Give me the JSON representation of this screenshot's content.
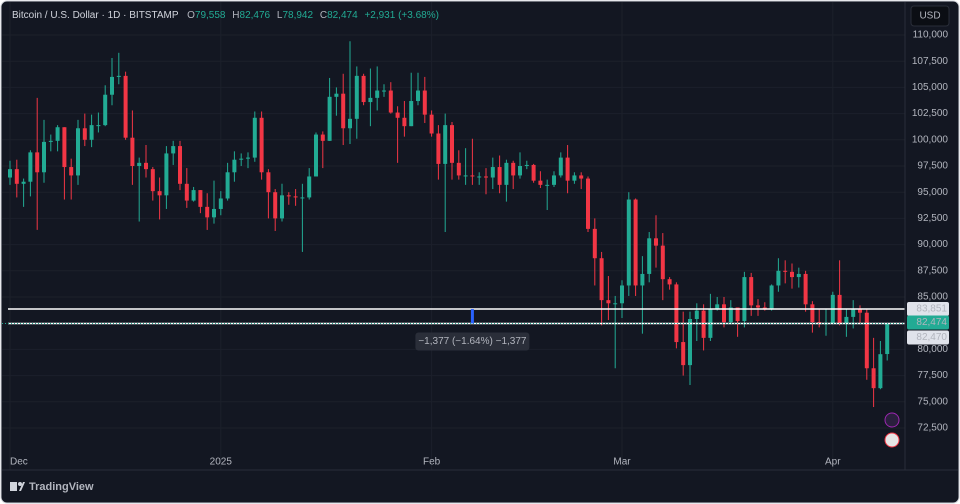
{
  "header": {
    "symbol": "Bitcoin / U.S. Dollar · 1D · BITSTAMP",
    "ohlc": [
      {
        "key": "O",
        "value": "79,558"
      },
      {
        "key": "H",
        "value": "82,476"
      },
      {
        "key": "L",
        "value": "78,942"
      },
      {
        "key": "C",
        "value": "82,474"
      }
    ],
    "change": "+2,931 (+3.68%)",
    "currency": "USD",
    "brand": "TradingView"
  },
  "chart_data": {
    "type": "candlestick",
    "up_color": "#22ab94",
    "down_color": "#f23645",
    "grid": true,
    "categories": [
      "Dec",
      null,
      null,
      null,
      null,
      null,
      null,
      null,
      null,
      null,
      null,
      null,
      null,
      null,
      null,
      null,
      null,
      null,
      null,
      null,
      null,
      null,
      null,
      null,
      null,
      null,
      null,
      null,
      null,
      null,
      null,
      "2025",
      null,
      null,
      null,
      null,
      null,
      null,
      null,
      null,
      null,
      null,
      null,
      null,
      null,
      null,
      null,
      null,
      null,
      null,
      null,
      null,
      null,
      null,
      null,
      null,
      null,
      null,
      null,
      null,
      null,
      null,
      "Feb",
      null,
      null,
      null,
      null,
      null,
      null,
      null,
      null,
      null,
      null,
      null,
      null,
      null,
      null,
      null,
      null,
      null,
      null,
      null,
      null,
      null,
      null,
      null,
      null,
      null,
      null,
      null,
      "Mar",
      null,
      null,
      null,
      null,
      null,
      null,
      null,
      null,
      null,
      null,
      null,
      null,
      null,
      null,
      null,
      null,
      null,
      null,
      null,
      null,
      null,
      null,
      null,
      null,
      null,
      null,
      null,
      null,
      null,
      null,
      "Apr",
      null,
      null,
      null,
      null,
      null,
      null,
      null,
      null
    ],
    "open": [
      96400,
      97200,
      95800,
      96000,
      98800,
      96900,
      99800,
      99900,
      101200,
      97400,
      96600,
      101100,
      100000,
      101400,
      101400,
      104300,
      106000,
      106100,
      100200,
      97500,
      97800,
      97200,
      95100,
      94700,
      98700,
      99400,
      95800,
      94200,
      95200,
      93600,
      92600,
      93400,
      94400,
      96900,
      98100,
      98200,
      98300,
      102100,
      96900,
      95000,
      92500,
      94700,
      94600,
      94500,
      94500,
      96500,
      100500,
      99900,
      104100,
      104400,
      101100,
      102000,
      106100,
      103600,
      104000,
      104700,
      104700,
      102600,
      102100,
      101300,
      103700,
      104700,
      102400,
      100600,
      97700,
      101400,
      97800,
      96600,
      96600,
      96500,
      96500,
      96400,
      97400,
      95700,
      97800,
      96600,
      97500,
      97600,
      96100,
      95700,
      95700,
      96600,
      98300,
      96100,
      96600,
      96300,
      91500,
      88700,
      84700,
      84400,
      84400,
      86100,
      94300,
      86100,
      87200,
      90600,
      89900,
      86700,
      86200,
      80700,
      78500,
      82900,
      83700,
      81100,
      83900,
      84300,
      82600,
      84000,
      82700,
      86900,
      84200,
      84000,
      83800,
      86100,
      87500,
      87400,
      86900,
      87200,
      84300,
      82600,
      82400,
      82500,
      85200,
      82500,
      83100,
      83800,
      83500,
      78200,
      76300,
      79558
    ],
    "high": [
      98000,
      98100,
      96300,
      99000,
      104000,
      101900,
      100500,
      101400,
      101200,
      98200,
      101900,
      102500,
      102400,
      102600,
      105200,
      107800,
      108300,
      106500,
      102800,
      98300,
      99500,
      97400,
      96400,
      99400,
      99900,
      99900,
      97300,
      95500,
      95200,
      94900,
      96100,
      95100,
      97800,
      98900,
      98700,
      98800,
      102700,
      102700,
      97200,
      95300,
      95800,
      95000,
      95300,
      95800,
      97300,
      100700,
      100800,
      105900,
      105000,
      106300,
      109400,
      107000,
      106300,
      106800,
      107000,
      105300,
      105500,
      103200,
      103700,
      106400,
      106400,
      106000,
      102800,
      101400,
      102500,
      101700,
      99000,
      99200,
      100100,
      96900,
      97300,
      98300,
      98500,
      98100,
      98000,
      98800,
      98000,
      97700,
      97000,
      96200,
      97000,
      98800,
      99500,
      96900,
      96900,
      96500,
      92500,
      89300,
      87000,
      85100,
      86600,
      95000,
      94400,
      88900,
      91200,
      92800,
      91100,
      86900,
      86400,
      83600,
      83600,
      84400,
      84300,
      85300,
      85000,
      85000,
      84700,
      84000,
      87400,
      87300,
      84800,
      84500,
      86200,
      88700,
      88500,
      88200,
      87800,
      87500,
      84600,
      83800,
      83900,
      85500,
      88500,
      83900,
      84700,
      84200,
      83800,
      81100,
      80800,
      82476
    ],
    "low": [
      95700,
      94500,
      93600,
      94600,
      91400,
      95900,
      98900,
      98900,
      94300,
      94300,
      95700,
      99400,
      99300,
      100700,
      101300,
      103300,
      105300,
      100000,
      95700,
      92200,
      96400,
      94200,
      92400,
      93400,
      97600,
      95200,
      93500,
      94100,
      93000,
      91400,
      92000,
      92800,
      94200,
      96000,
      97500,
      97300,
      97900,
      96200,
      92500,
      91300,
      92200,
      93800,
      93700,
      89300,
      94300,
      96500,
      97300,
      99900,
      102300,
      99500,
      99600,
      100100,
      103300,
      101300,
      102800,
      104100,
      102500,
      97800,
      100300,
      101300,
      103300,
      101600,
      100300,
      96200,
      91200,
      96200,
      96200,
      95700,
      95700,
      95700,
      94800,
      95300,
      94900,
      94100,
      95300,
      96300,
      97200,
      95900,
      95400,
      93300,
      95500,
      96400,
      94900,
      95800,
      95300,
      91200,
      86100,
      82300,
      82800,
      78200,
      83000,
      85100,
      85100,
      81500,
      86400,
      87800,
      84700,
      85700,
      80100,
      77500,
      76600,
      80800,
      79900,
      80800,
      83700,
      82100,
      82400,
      81200,
      82100,
      83200,
      83200,
      83700,
      83700,
      85500,
      86300,
      85800,
      85900,
      83600,
      81600,
      82100,
      81300,
      82400,
      82300,
      81200,
      82000,
      82400,
      77100,
      74500,
      76200,
      78942
    ],
    "close": [
      97200,
      95800,
      96000,
      98800,
      96900,
      99800,
      99900,
      101200,
      97400,
      96600,
      101100,
      100000,
      101400,
      101400,
      104300,
      106000,
      106100,
      100200,
      97500,
      97800,
      97200,
      95100,
      94700,
      98700,
      99400,
      95800,
      94200,
      95200,
      93600,
      92600,
      93400,
      94400,
      96900,
      98100,
      98200,
      98300,
      102100,
      96900,
      95000,
      92500,
      94700,
      94600,
      94500,
      94500,
      96500,
      100500,
      99900,
      104100,
      104400,
      101100,
      102000,
      106100,
      103600,
      104000,
      104700,
      104700,
      102600,
      102100,
      101300,
      103700,
      104700,
      102400,
      100600,
      97700,
      101400,
      97800,
      96600,
      96600,
      96500,
      96500,
      96400,
      97400,
      95700,
      97800,
      96600,
      97500,
      97600,
      96100,
      95700,
      95700,
      96600,
      98300,
      96100,
      96600,
      96300,
      91500,
      88700,
      84700,
      84400,
      84400,
      86100,
      94300,
      86100,
      87200,
      90600,
      89900,
      86700,
      86200,
      80700,
      78500,
      82900,
      83700,
      81100,
      83900,
      84300,
      82600,
      84000,
      82700,
      86900,
      84200,
      84000,
      83800,
      86100,
      87500,
      87400,
      86900,
      87200,
      84300,
      82600,
      82400,
      82500,
      85200,
      82500,
      83100,
      83800,
      83500,
      78200,
      76300,
      79543,
      82474
    ],
    "ylim": [
      70400,
      111240
    ],
    "yticks": [
      {
        "value": 72500,
        "label": "72,500"
      },
      {
        "value": 75000,
        "label": "75,000"
      },
      {
        "value": 77500,
        "label": "77,500"
      },
      {
        "value": 80000,
        "label": "80,000"
      },
      {
        "value": 82500,
        "label": "82,500"
      },
      {
        "value": 85000,
        "label": "85,000"
      },
      {
        "value": 87500,
        "label": "87,500"
      },
      {
        "value": 90000,
        "label": "90,000"
      },
      {
        "value": 92500,
        "label": "92,500"
      },
      {
        "value": 95000,
        "label": "95,000"
      },
      {
        "value": 97500,
        "label": "97,500"
      },
      {
        "value": 100000,
        "label": "100,000"
      },
      {
        "value": 102500,
        "label": "102,500"
      },
      {
        "value": 105000,
        "label": "105,000"
      },
      {
        "value": 107500,
        "label": "107,500"
      },
      {
        "value": 110000,
        "label": "110,000"
      }
    ],
    "price_lines": [
      {
        "value": 83851,
        "label": "83,851"
      },
      {
        "value": 82470,
        "label": "82,470"
      }
    ],
    "last_price": {
      "value": 82474,
      "label": "82,474"
    },
    "measure_label": "−1,377 (−1.64%) −1,377"
  }
}
